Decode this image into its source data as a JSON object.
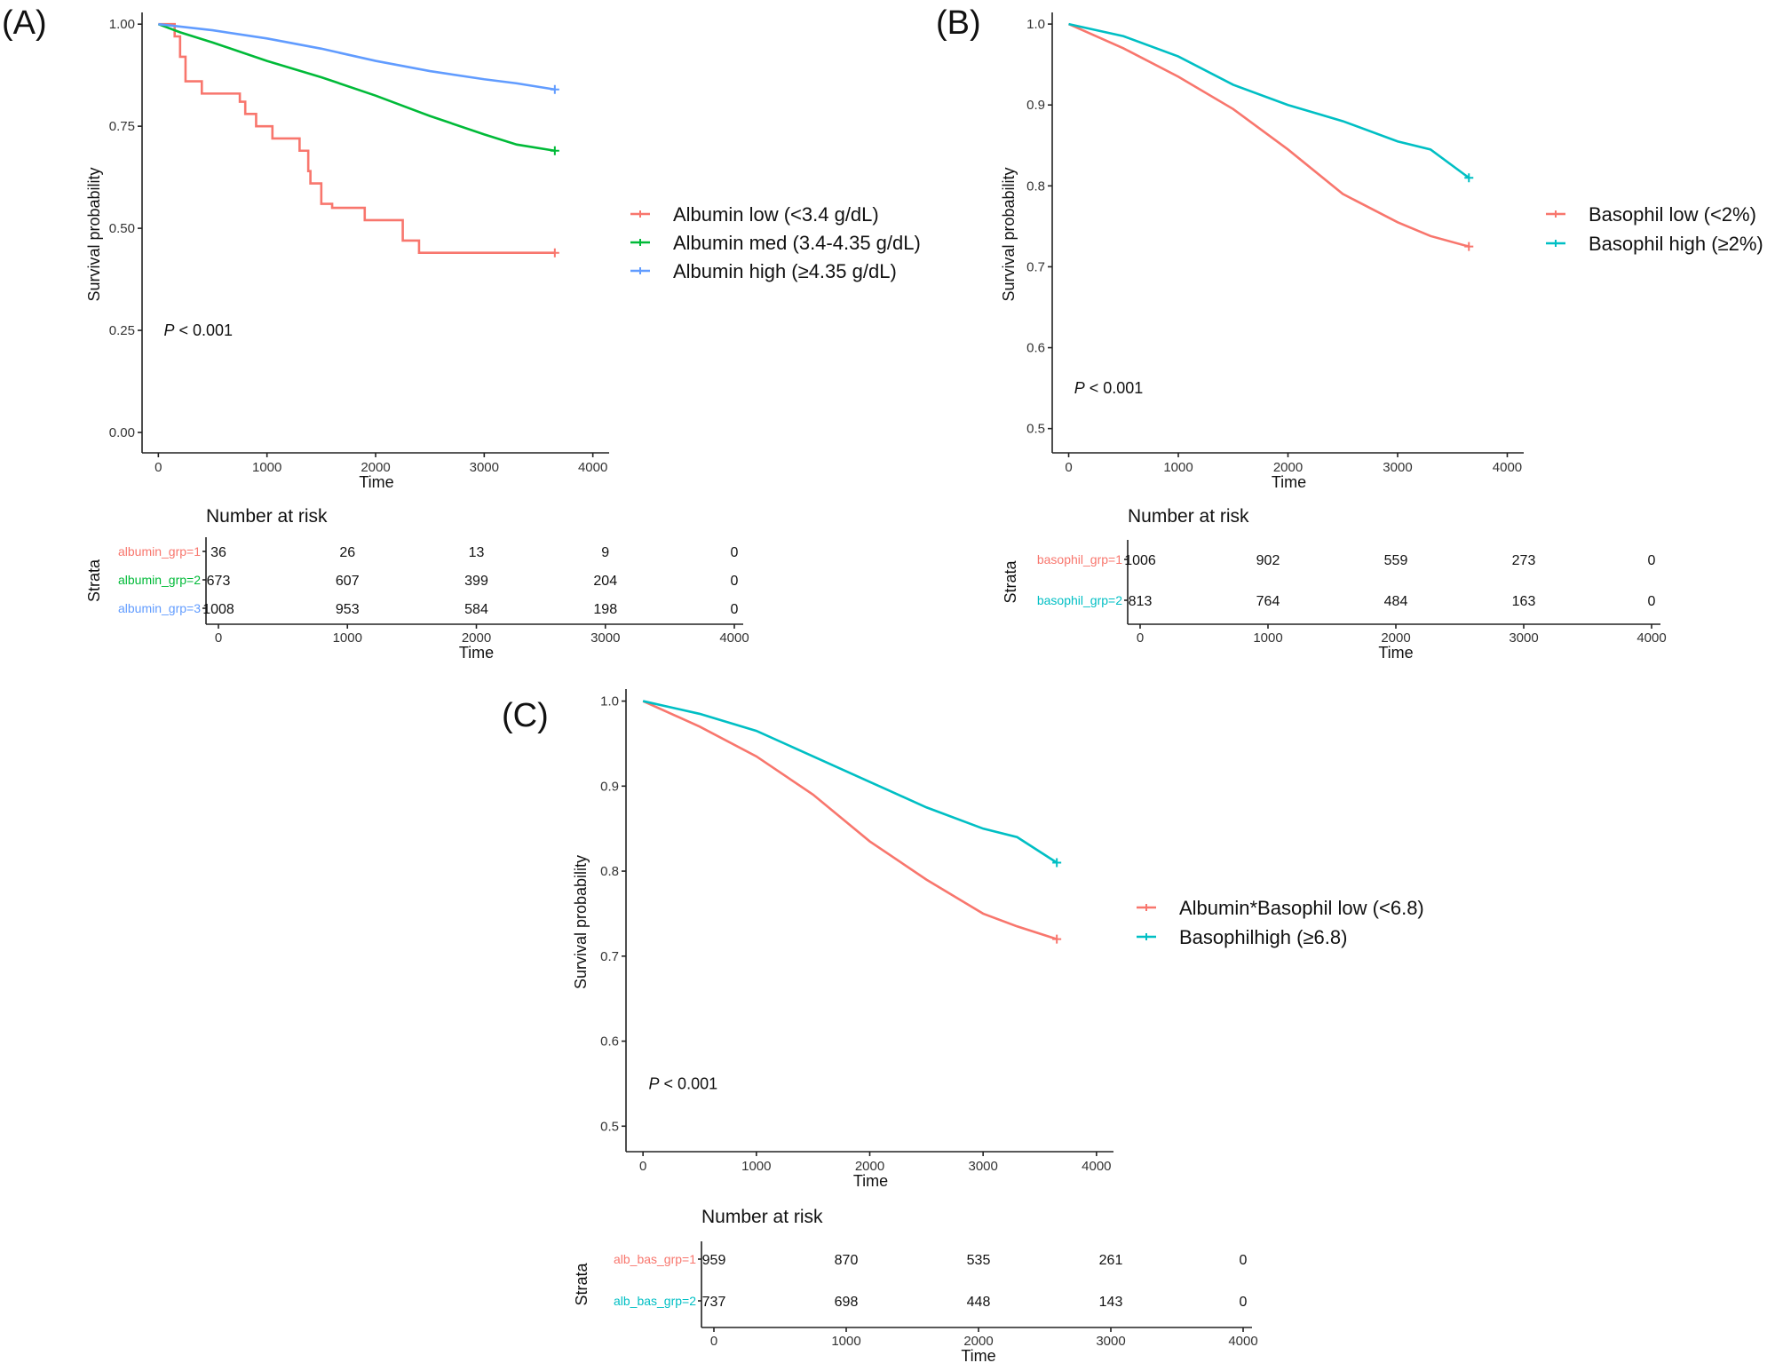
{
  "chart_data": [
    {
      "type": "line",
      "panel": "(A)",
      "xlabel": "Time",
      "ylabel": "Survival probability",
      "xlim": [
        -150,
        4150
      ],
      "ylim": [
        -0.05,
        1.02
      ],
      "xticks": [
        0,
        1000,
        2000,
        3000,
        4000
      ],
      "xtick_labels": [
        "0",
        "1000",
        "2000",
        "3000",
        "4000"
      ],
      "yticks": [
        0,
        0.25,
        0.5,
        0.75,
        1.0
      ],
      "ytick_labels": [
        "0.00",
        "0.25",
        "0.50",
        "0.75",
        "1.00"
      ],
      "pvalue": "< 0.001",
      "pvalue_prefix": "P",
      "pvalue_pos": [
        50,
        0.25
      ],
      "series": [
        {
          "name": "Albumin low (<3.4 g/dL)",
          "color": "#F8766D",
          "step": true,
          "x": [
            0,
            150,
            200,
            250,
            400,
            750,
            800,
            900,
            1050,
            1300,
            1380,
            1400,
            1500,
            1600,
            1900,
            2250,
            2400,
            3650
          ],
          "y": [
            1.0,
            0.97,
            0.92,
            0.86,
            0.83,
            0.81,
            0.78,
            0.75,
            0.72,
            0.69,
            0.64,
            0.61,
            0.56,
            0.55,
            0.52,
            0.47,
            0.44,
            0.44
          ]
        },
        {
          "name": "Albumin med (3.4-4.35 g/dL)",
          "color": "#00BA38",
          "x": [
            0,
            200,
            500,
            1000,
            1500,
            2000,
            2500,
            3000,
            3300,
            3650
          ],
          "y": [
            1.0,
            0.98,
            0.955,
            0.91,
            0.87,
            0.825,
            0.775,
            0.73,
            0.705,
            0.69
          ]
        },
        {
          "name": "Albumin high (≥4.35 g/dL)",
          "color": "#619CFF",
          "x": [
            0,
            500,
            1000,
            1500,
            2000,
            2500,
            3000,
            3300,
            3650
          ],
          "y": [
            1.0,
            0.985,
            0.965,
            0.94,
            0.91,
            0.885,
            0.865,
            0.855,
            0.84
          ]
        }
      ],
      "risk_table": {
        "title": "Number at risk",
        "strata_label": "Strata",
        "xlabel": "Time",
        "times": [
          0,
          1000,
          2000,
          3000,
          4000
        ],
        "time_labels": [
          "0",
          "1000",
          "2000",
          "3000",
          "4000"
        ],
        "rows": [
          {
            "name": "albumin_grp=1",
            "color": "#F8766D",
            "counts": [
              "36",
              "26",
              "13",
              "9",
              "0"
            ]
          },
          {
            "name": "albumin_grp=2",
            "color": "#00BA38",
            "counts": [
              "673",
              "607",
              "399",
              "204",
              "0"
            ]
          },
          {
            "name": "albumin_grp=3",
            "color": "#619CFF",
            "counts": [
              "1008",
              "953",
              "584",
              "198",
              "0"
            ]
          }
        ]
      }
    },
    {
      "type": "line",
      "panel": "(B)",
      "xlabel": "Time",
      "ylabel": "Survival probability",
      "xlim": [
        -150,
        4150
      ],
      "ylim": [
        0.47,
        1.01
      ],
      "xticks": [
        0,
        1000,
        2000,
        3000,
        4000
      ],
      "xtick_labels": [
        "0",
        "1000",
        "2000",
        "3000",
        "4000"
      ],
      "yticks": [
        0.5,
        0.6,
        0.7,
        0.8,
        0.9,
        1.0
      ],
      "ytick_labels": [
        "0.5",
        "0.6",
        "0.7",
        "0.8",
        "0.9",
        "1.0"
      ],
      "pvalue": "< 0.001",
      "pvalue_prefix": "P",
      "pvalue_pos": [
        50,
        0.55
      ],
      "series": [
        {
          "name": "Basophil low (<2%)",
          "color": "#F8766D",
          "x": [
            0,
            500,
            1000,
            1500,
            2000,
            2500,
            3000,
            3300,
            3650
          ],
          "y": [
            1.0,
            0.97,
            0.935,
            0.895,
            0.845,
            0.79,
            0.755,
            0.738,
            0.725
          ]
        },
        {
          "name": "Basophil high (≥2%)",
          "color": "#00BFC4",
          "x": [
            0,
            500,
            1000,
            1500,
            2000,
            2500,
            3000,
            3300,
            3650
          ],
          "y": [
            1.0,
            0.985,
            0.96,
            0.925,
            0.9,
            0.88,
            0.855,
            0.845,
            0.81
          ]
        }
      ],
      "risk_table": {
        "title": "Number at risk",
        "strata_label": "Strata",
        "xlabel": "Time",
        "times": [
          0,
          1000,
          2000,
          3000,
          4000
        ],
        "time_labels": [
          "0",
          "1000",
          "2000",
          "3000",
          "4000"
        ],
        "rows": [
          {
            "name": "basophil_grp=1",
            "color": "#F8766D",
            "counts": [
              "1006",
              "902",
              "559",
              "273",
              "0"
            ]
          },
          {
            "name": "basophil_grp=2",
            "color": "#00BFC4",
            "counts": [
              "813",
              "764",
              "484",
              "163",
              "0"
            ]
          }
        ]
      }
    },
    {
      "type": "line",
      "panel": "(C)",
      "xlabel": "Time",
      "ylabel": "Survival probability",
      "xlim": [
        -150,
        4150
      ],
      "ylim": [
        0.47,
        1.01
      ],
      "xticks": [
        0,
        1000,
        2000,
        3000,
        4000
      ],
      "xtick_labels": [
        "0",
        "1000",
        "2000",
        "3000",
        "4000"
      ],
      "yticks": [
        0.5,
        0.6,
        0.7,
        0.8,
        0.9,
        1.0
      ],
      "ytick_labels": [
        "0.5",
        "0.6",
        "0.7",
        "0.8",
        "0.9",
        "1.0"
      ],
      "pvalue": "< 0.001",
      "pvalue_prefix": "P",
      "pvalue_pos": [
        50,
        0.55
      ],
      "series": [
        {
          "name": "Albumin*Basophil low (<6.8)",
          "color": "#F8766D",
          "x": [
            0,
            500,
            1000,
            1500,
            2000,
            2500,
            3000,
            3300,
            3650
          ],
          "y": [
            1.0,
            0.97,
            0.935,
            0.89,
            0.835,
            0.79,
            0.75,
            0.735,
            0.72
          ]
        },
        {
          "name": "Basophilhigh (≥6.8)",
          "color": "#00BFC4",
          "x": [
            0,
            500,
            1000,
            1500,
            2000,
            2500,
            3000,
            3300,
            3650
          ],
          "y": [
            1.0,
            0.985,
            0.965,
            0.935,
            0.905,
            0.875,
            0.85,
            0.84,
            0.81
          ]
        }
      ],
      "risk_table": {
        "title": "Number at risk",
        "strata_label": "Strata",
        "xlabel": "Time",
        "times": [
          0,
          1000,
          2000,
          3000,
          4000
        ],
        "time_labels": [
          "0",
          "1000",
          "2000",
          "3000",
          "4000"
        ],
        "rows": [
          {
            "name": "alb_bas_grp=1",
            "color": "#F8766D",
            "counts": [
              "959",
              "870",
              "535",
              "261",
              "0"
            ]
          },
          {
            "name": "alb_bas_grp=2",
            "color": "#00BFC4",
            "counts": [
              "737",
              "698",
              "448",
              "143",
              "0"
            ]
          }
        ]
      }
    }
  ]
}
